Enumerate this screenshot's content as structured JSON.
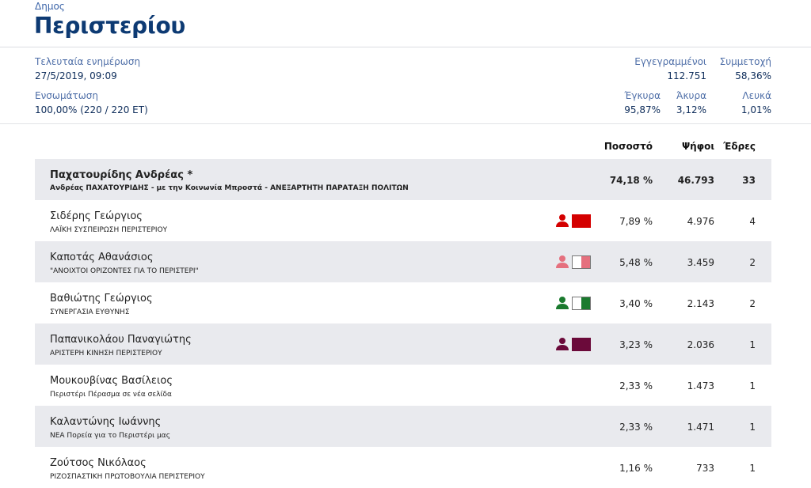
{
  "header": {
    "kicker": "Δημος",
    "title": "Περιστερίου"
  },
  "info": {
    "last_update_label": "Τελευταία ενημέρωση",
    "last_update": "27/5/2019, 09:09",
    "integration_label": "Ενσωμάτωση",
    "integration": "100,00% (220 / 220 ΕΤ)",
    "registered_label": "Εγγεγραμμένοι",
    "registered": "112.751",
    "turnout_label": "Συμμετοχή",
    "turnout": "58,36%",
    "valid_label": "Έγκυρα",
    "valid": "95,87%",
    "invalid_label": "Άκυρα",
    "invalid": "3,12%",
    "blank_label": "Λευκά",
    "blank": "1,01%"
  },
  "table": {
    "headers": {
      "pct": "Ποσοστό",
      "votes": "Ψήφοι",
      "seats": "Έδρες"
    },
    "rows": [
      {
        "name": "Παχατουρίδης Ανδρέας *",
        "party": "Ανδρέας ΠΑΧΑΤΟΥΡΙΔΗΣ - με την Κοινωνία Μπροστά - ΑΝΕΞΑΡΤΗΤΗ ΠΑΡΑΤΑΞΗ ΠΟΛΙΤΩΝ",
        "pct": "74,18 %",
        "votes": "46.793",
        "seats": "33"
      },
      {
        "name": "Σιδέρης Γεώργιος",
        "party": "ΛΑΪΚΗ ΣΥΣΠΕΙΡΩΣΗ ΠΕΡΙΣΤΕΡΙΟΥ",
        "pct": "7,89 %",
        "votes": "4.976",
        "seats": "4",
        "color": "#d40000",
        "flag": "full"
      },
      {
        "name": "Καποτάς Αθανάσιος",
        "party": "\"ΑΝΟΙΧΤΟΙ ΟΡΙΖΟΝΤΕΣ ΓΙΑ ΤΟ ΠΕΡΙΣΤΕΡΙ\"",
        "pct": "5,48 %",
        "votes": "3.459",
        "seats": "2",
        "color": "#e5707e",
        "flag": "half"
      },
      {
        "name": "Βαθιώτης Γεώργιος",
        "party": "ΣΥΝΕΡΓΑΣΙΑ ΕΥΘΥΝΗΣ",
        "pct": "3,40 %",
        "votes": "2.143",
        "seats": "2",
        "color": "#1a7a2e",
        "flag": "half"
      },
      {
        "name": "Παπανικολάου Παναγιώτης",
        "party": "ΑΡΙΣΤΕΡΗ ΚΙΝΗΣΗ ΠΕΡΙΣΤΕΡΙΟΥ",
        "pct": "3,23 %",
        "votes": "2.036",
        "seats": "1",
        "color": "#6b0a3a",
        "flag": "full"
      },
      {
        "name": "Μουκουβίνας Βασίλειος",
        "party": "Περιστέρι Πέρασμα σε νέα σελίδα",
        "pct": "2,33 %",
        "votes": "1.473",
        "seats": "1"
      },
      {
        "name": "Καλαντώνης Ιωάννης",
        "party": "ΝΕΑ Πορεία για το Περιστέρι μας",
        "pct": "2,33 %",
        "votes": "1.471",
        "seats": "1"
      },
      {
        "name": "Ζούτσος Νικόλαος",
        "party": "ΡΙΖΟΣΠΑΣΤΙΚΗ ΠΡΩΤΟΒΟΥΛΙΑ ΠΕΡΙΣΤΕΡΙΟΥ",
        "pct": "1,16 %",
        "votes": "733",
        "seats": "1"
      }
    ]
  }
}
